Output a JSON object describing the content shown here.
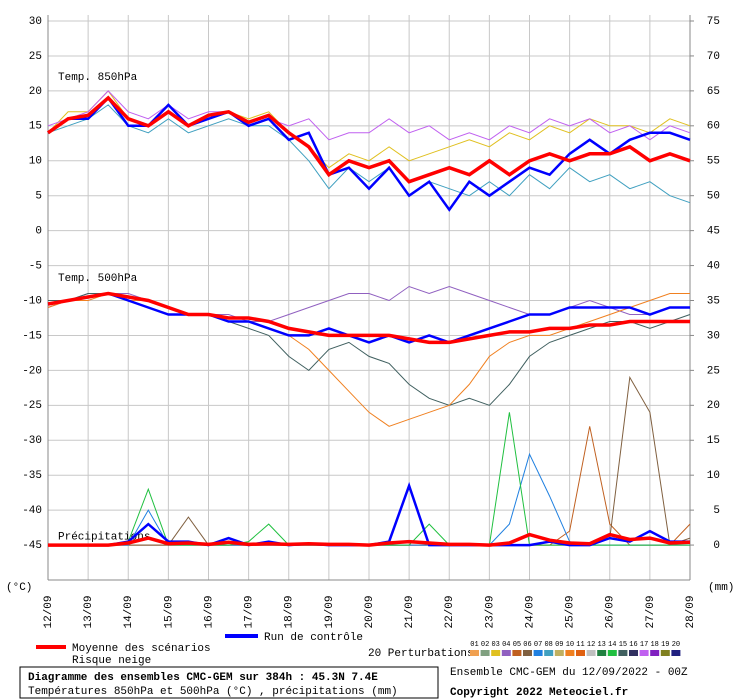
{
  "chart_data": {
    "type": "line",
    "title": "Diagramme des ensembles CMC-GEM sur 384h : 45.3N 7.4E",
    "subtitle": "Températures 850hPa et 500hPa (°C) , précipitations (mm)",
    "run_label": "Ensemble CMC-GEM du 12/09/2022 - 00Z",
    "copyright": "Copyright 2022 Meteociel.fr",
    "annotations": [
      "Temp. 850hPa",
      "Temp. 500hPa",
      "Précipitations"
    ],
    "ylabel": "(°C)",
    "y2label": "(mm)",
    "snow_label": "Risque neige",
    "perturbations_label": "20 Perturbations",
    "perturbations": [
      {
        "name": "01",
        "color": "#f0a050"
      },
      {
        "name": "02",
        "color": "#80a080"
      },
      {
        "name": "03",
        "color": "#e0c020"
      },
      {
        "name": "04",
        "color": "#9060c0"
      },
      {
        "name": "05",
        "color": "#c06020"
      },
      {
        "name": "06",
        "color": "#806040"
      },
      {
        "name": "07",
        "color": "#2080e0"
      },
      {
        "name": "08",
        "color": "#40a0c0"
      },
      {
        "name": "09",
        "color": "#c0b060"
      },
      {
        "name": "10",
        "color": "#f08020"
      },
      {
        "name": "11",
        "color": "#e06010"
      },
      {
        "name": "12",
        "color": "#c0c0c0"
      },
      {
        "name": "13",
        "color": "#208040"
      },
      {
        "name": "14",
        "color": "#20c040"
      },
      {
        "name": "15",
        "color": "#406060"
      },
      {
        "name": "16",
        "color": "#303060"
      },
      {
        "name": "17",
        "color": "#c060f0"
      },
      {
        "name": "18",
        "color": "#8020c0"
      },
      {
        "name": "19",
        "color": "#808020"
      },
      {
        "name": "20",
        "color": "#202080"
      }
    ],
    "grid": true,
    "x": [
      0,
      0.5,
      1,
      1.5,
      2,
      2.5,
      3,
      3.5,
      4,
      4.5,
      5,
      5.5,
      6,
      6.5,
      7,
      7.5,
      8,
      8.5,
      9,
      9.5,
      10,
      10.5,
      11,
      11.5,
      12,
      12.5,
      13,
      13.5,
      14,
      14.5,
      15,
      15.5,
      16
    ],
    "xlim": [
      0,
      16
    ],
    "xticks": [
      {
        "value": 0,
        "label": "12/09"
      },
      {
        "value": 1,
        "label": "13/09"
      },
      {
        "value": 2,
        "label": "14/09"
      },
      {
        "value": 3,
        "label": "15/09"
      },
      {
        "value": 4,
        "label": "16/09"
      },
      {
        "value": 5,
        "label": "17/09"
      },
      {
        "value": 6,
        "label": "18/09"
      },
      {
        "value": 7,
        "label": "19/09"
      },
      {
        "value": 8,
        "label": "20/09"
      },
      {
        "value": 9,
        "label": "21/09"
      },
      {
        "value": 10,
        "label": "22/09"
      },
      {
        "value": 11,
        "label": "23/09"
      },
      {
        "value": 12,
        "label": "24/09"
      },
      {
        "value": 13,
        "label": "25/09"
      },
      {
        "value": 14,
        "label": "26/09"
      },
      {
        "value": 15,
        "label": "27/09"
      },
      {
        "value": 16,
        "label": "28/09"
      }
    ],
    "ylim": [
      -50,
      30
    ],
    "yticks": [
      30,
      25,
      20,
      15,
      10,
      5,
      0,
      -5,
      -10,
      -15,
      -20,
      -25,
      -30,
      -35,
      -40,
      -45
    ],
    "y2lim": [
      -5,
      75
    ],
    "y2ticks": [
      75,
      70,
      65,
      60,
      55,
      50,
      45,
      40,
      35,
      30,
      25,
      20,
      15,
      10,
      5,
      0
    ],
    "t850_series": [
      {
        "name": "Moyenne des scénarios",
        "color": "#ff0000",
        "values": [
          14,
          16,
          16.5,
          19,
          16,
          15,
          17,
          15,
          16.5,
          17,
          15.5,
          16.5,
          14,
          12,
          8,
          10,
          9,
          10,
          7,
          8,
          9,
          8,
          10,
          8,
          10,
          11,
          10,
          11,
          11,
          12,
          10,
          11,
          10
        ]
      },
      {
        "name": "Run de contrôle",
        "color": "#0000ff",
        "values": [
          14,
          16,
          16,
          19,
          15,
          15,
          18,
          15,
          16,
          17,
          15,
          16,
          13,
          14,
          8,
          9,
          6,
          9,
          5,
          7,
          3,
          7,
          5,
          7,
          9,
          8,
          11,
          13,
          11,
          13,
          14,
          14,
          13
        ]
      },
      {
        "name": "17",
        "color": "#c060f0",
        "values": [
          15,
          16,
          17,
          20,
          17,
          16,
          18,
          16,
          17,
          17,
          15,
          16,
          15,
          16,
          13,
          14,
          14,
          16,
          14,
          15,
          13,
          14,
          13,
          15,
          14,
          16,
          15,
          16,
          14,
          15,
          13,
          15,
          14
        ]
      },
      {
        "name": "08",
        "color": "#40a0c0",
        "values": [
          14,
          15,
          16,
          18,
          15,
          14,
          16,
          14,
          15,
          16,
          15,
          15,
          13,
          10,
          6,
          9,
          7,
          9,
          5,
          7,
          6,
          5,
          7,
          5,
          8,
          6,
          9,
          7,
          8,
          6,
          7,
          5,
          4
        ]
      },
      {
        "name": "03",
        "color": "#e0c020",
        "values": [
          14,
          17,
          17,
          20,
          16,
          15,
          17,
          15,
          16,
          17,
          16,
          17,
          14,
          12,
          9,
          11,
          10,
          12,
          10,
          11,
          12,
          13,
          12,
          14,
          13,
          15,
          14,
          16,
          15,
          15,
          14,
          16,
          15
        ]
      }
    ],
    "t500_series": [
      {
        "name": "Moyenne des scénarios",
        "color": "#ff0000",
        "values": [
          -10.5,
          -10,
          -9.5,
          -9,
          -9.5,
          -10,
          -11,
          -12,
          -12,
          -12.5,
          -12.5,
          -13,
          -14,
          -14.5,
          -15,
          -15,
          -15,
          -15,
          -15.5,
          -16,
          -16,
          -15.5,
          -15,
          -14.5,
          -14.5,
          -14,
          -14,
          -13.5,
          -13.5,
          -13,
          -13,
          -13,
          -13
        ]
      },
      {
        "name": "Run de contrôle",
        "color": "#0000ff",
        "values": [
          -10.5,
          -10,
          -9.5,
          -9,
          -10,
          -11,
          -12,
          -12,
          -12,
          -13,
          -13,
          -14,
          -15,
          -15,
          -14,
          -15,
          -16,
          -15,
          -16,
          -15,
          -16,
          -15,
          -14,
          -13,
          -12,
          -12,
          -11,
          -11,
          -11,
          -11,
          -12,
          -11,
          -11
        ]
      },
      {
        "name": "10",
        "color": "#f08020",
        "values": [
          -11,
          -10,
          -10,
          -9,
          -10,
          -10,
          -11,
          -12,
          -12,
          -13,
          -13,
          -14,
          -15,
          -17,
          -20,
          -23,
          -26,
          -28,
          -27,
          -26,
          -25,
          -22,
          -18,
          -16,
          -15,
          -15,
          -14,
          -13,
          -12,
          -11,
          -10,
          -9,
          -9
        ]
      },
      {
        "name": "15",
        "color": "#406060",
        "values": [
          -10,
          -10,
          -9,
          -9,
          -10,
          -11,
          -12,
          -12,
          -12,
          -13,
          -14,
          -15,
          -18,
          -20,
          -17,
          -16,
          -18,
          -19,
          -22,
          -24,
          -25,
          -24,
          -25,
          -22,
          -18,
          -16,
          -15,
          -14,
          -13,
          -13,
          -14,
          -13,
          -12
        ]
      },
      {
        "name": "04",
        "color": "#9060c0",
        "values": [
          -11,
          -10,
          -9,
          -9,
          -9,
          -10,
          -11,
          -12,
          -12,
          -12,
          -13,
          -13,
          -12,
          -11,
          -10,
          -9,
          -9,
          -10,
          -8,
          -9,
          -8,
          -9,
          -10,
          -11,
          -12,
          -12,
          -11,
          -10,
          -11,
          -12,
          -12,
          -11,
          -11
        ]
      }
    ],
    "precip_series": [
      {
        "name": "Moyenne des scénarios",
        "color": "#ff0000",
        "axis": "y2",
        "values": [
          0,
          0,
          0,
          0,
          0.3,
          1,
          0.2,
          0.3,
          0.1,
          0.4,
          0.1,
          0.2,
          0.1,
          0.2,
          0.1,
          0.1,
          0,
          0.3,
          0.5,
          0.3,
          0.1,
          0.1,
          0,
          0.3,
          1.5,
          0.7,
          0.3,
          0.2,
          1.5,
          0.8,
          1,
          0.3,
          0.4
        ]
      },
      {
        "name": "Run de contrôle",
        "color": "#0000ff",
        "axis": "y2",
        "values": [
          0,
          0,
          0,
          0,
          0.5,
          3,
          0.5,
          0.5,
          0,
          1,
          0,
          0.5,
          0,
          0.2,
          0,
          0,
          0,
          0.5,
          8.5,
          0,
          0,
          0,
          0,
          0,
          0,
          0.5,
          0,
          0,
          1,
          0.5,
          2,
          0.5,
          0.5
        ]
      },
      {
        "name": "14",
        "color": "#20c040",
        "axis": "y2",
        "values": [
          0,
          0,
          0,
          0,
          0.5,
          8,
          0,
          0,
          0,
          0,
          0.5,
          3,
          0,
          0,
          0,
          0,
          0,
          0,
          0,
          3,
          0,
          0,
          0,
          19,
          0,
          0,
          0,
          0,
          0,
          0,
          0,
          0,
          0
        ]
      },
      {
        "name": "07",
        "color": "#2080e0",
        "axis": "y2",
        "values": [
          0,
          0,
          0,
          0,
          0,
          5,
          0,
          0,
          0,
          0,
          0,
          0,
          0,
          0,
          0,
          0,
          0,
          0,
          0,
          0,
          0,
          0,
          0,
          3,
          13,
          7,
          0.5,
          0,
          0,
          0,
          0,
          0,
          0
        ]
      },
      {
        "name": "06",
        "color": "#806040",
        "axis": "y2",
        "values": [
          0,
          0,
          0,
          0,
          0,
          0,
          0,
          4,
          0,
          0,
          0,
          0,
          0,
          0,
          0,
          0,
          0,
          0,
          0,
          0,
          0,
          0,
          0,
          0,
          0,
          0,
          0,
          0,
          1,
          24,
          19,
          0,
          1
        ]
      },
      {
        "name": "05",
        "color": "#c06020",
        "axis": "y2",
        "values": [
          0,
          0,
          0,
          0,
          0,
          0,
          0,
          0,
          0,
          0,
          0,
          0,
          0,
          0,
          0,
          0,
          0,
          0,
          0,
          0,
          0,
          0,
          0,
          0,
          0,
          0,
          2,
          17,
          3,
          0,
          0,
          0,
          3
        ]
      }
    ]
  }
}
